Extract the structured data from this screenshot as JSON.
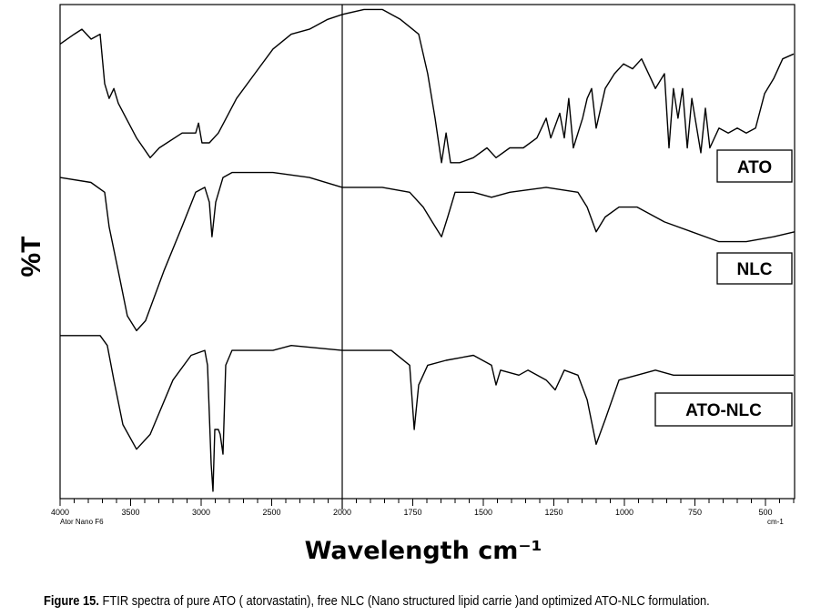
{
  "chart_data": {
    "type": "line",
    "title": "",
    "xlabel": "Wavelength cm⁻¹",
    "ylabel": "%T",
    "x_reversed": true,
    "xlim": [
      4000,
      400
    ],
    "ylim": [
      0,
      100
    ],
    "axis_note_left": "Ator Nano F6",
    "axis_note_right": "cm-1",
    "x_ticks": [
      "4000",
      "3500",
      "3000",
      "2500",
      "2000",
      "1750",
      "1500",
      "1250",
      "1000",
      "750",
      "500"
    ],
    "grid": false,
    "series": [
      {
        "name": "ATO",
        "color": "#000000",
        "points": [
          [
            4000,
            92
          ],
          [
            3900,
            94
          ],
          [
            3845,
            95
          ],
          [
            3780,
            93
          ],
          [
            3716,
            94
          ],
          [
            3684,
            84
          ],
          [
            3652,
            81
          ],
          [
            3619,
            83
          ],
          [
            3587,
            80
          ],
          [
            3458,
            73
          ],
          [
            3361,
            69
          ],
          [
            3297,
            71
          ],
          [
            3135,
            74
          ],
          [
            3039,
            74
          ],
          [
            3019,
            76
          ],
          [
            2994,
            72
          ],
          [
            2942,
            72
          ],
          [
            2878,
            74
          ],
          [
            2749,
            81
          ],
          [
            2620,
            86
          ],
          [
            2491,
            91
          ],
          [
            2361,
            94
          ],
          [
            2232,
            95
          ],
          [
            2103,
            97
          ],
          [
            2000,
            98
          ],
          [
            1923,
            99
          ],
          [
            1858,
            99
          ],
          [
            1794,
            97
          ],
          [
            1729,
            94
          ],
          [
            1697,
            86
          ],
          [
            1671,
            77
          ],
          [
            1648,
            68
          ],
          [
            1632,
            74
          ],
          [
            1616,
            68
          ],
          [
            1584,
            68
          ],
          [
            1535,
            69
          ],
          [
            1487,
            71
          ],
          [
            1455,
            69
          ],
          [
            1406,
            71
          ],
          [
            1358,
            71
          ],
          [
            1310,
            73
          ],
          [
            1277,
            77
          ],
          [
            1261,
            73
          ],
          [
            1229,
            78
          ],
          [
            1213,
            73
          ],
          [
            1197,
            81
          ],
          [
            1181,
            71
          ],
          [
            1148,
            77
          ],
          [
            1132,
            81
          ],
          [
            1116,
            83
          ],
          [
            1100,
            75
          ],
          [
            1068,
            83
          ],
          [
            1035,
            86
          ],
          [
            1003,
            88
          ],
          [
            971,
            87
          ],
          [
            939,
            89
          ],
          [
            906,
            85
          ],
          [
            890,
            83
          ],
          [
            858,
            86
          ],
          [
            842,
            71
          ],
          [
            826,
            83
          ],
          [
            810,
            77
          ],
          [
            794,
            83
          ],
          [
            777,
            71
          ],
          [
            761,
            81
          ],
          [
            729,
            70
          ],
          [
            713,
            79
          ],
          [
            697,
            71
          ],
          [
            665,
            75
          ],
          [
            632,
            74
          ],
          [
            600,
            75
          ],
          [
            568,
            74
          ],
          [
            535,
            75
          ],
          [
            503,
            82
          ],
          [
            471,
            85
          ],
          [
            439,
            89
          ],
          [
            400,
            90
          ]
        ]
      },
      {
        "name": "NLC",
        "color": "#000000",
        "points": [
          [
            4000,
            65
          ],
          [
            3781,
            64
          ],
          [
            3684,
            62
          ],
          [
            3652,
            55
          ],
          [
            3587,
            46
          ],
          [
            3523,
            37
          ],
          [
            3458,
            34
          ],
          [
            3394,
            36
          ],
          [
            3265,
            46
          ],
          [
            3136,
            55
          ],
          [
            3039,
            62
          ],
          [
            2974,
            63
          ],
          [
            2942,
            60
          ],
          [
            2923,
            53
          ],
          [
            2897,
            60
          ],
          [
            2845,
            65
          ],
          [
            2781,
            66
          ],
          [
            2491,
            66
          ],
          [
            2233,
            65
          ],
          [
            2000,
            63
          ],
          [
            1858,
            63
          ],
          [
            1761,
            62
          ],
          [
            1713,
            59
          ],
          [
            1681,
            56
          ],
          [
            1648,
            53
          ],
          [
            1626,
            57
          ],
          [
            1600,
            62
          ],
          [
            1535,
            62
          ],
          [
            1471,
            61
          ],
          [
            1406,
            62
          ],
          [
            1277,
            63
          ],
          [
            1165,
            62
          ],
          [
            1132,
            59
          ],
          [
            1100,
            54
          ],
          [
            1068,
            57
          ],
          [
            1019,
            59
          ],
          [
            955,
            59
          ],
          [
            858,
            56
          ],
          [
            761,
            54
          ],
          [
            665,
            52
          ],
          [
            568,
            52
          ],
          [
            471,
            53
          ],
          [
            397,
            54
          ]
        ]
      },
      {
        "name": "ATO-NLC",
        "color": "#000000",
        "points": [
          [
            4000,
            33
          ],
          [
            3716,
            33
          ],
          [
            3665,
            31
          ],
          [
            3619,
            24
          ],
          [
            3555,
            15
          ],
          [
            3458,
            10
          ],
          [
            3361,
            13
          ],
          [
            3200,
            24
          ],
          [
            3071,
            29
          ],
          [
            2974,
            30
          ],
          [
            2955,
            27
          ],
          [
            2929,
            7
          ],
          [
            2916,
            1.5
          ],
          [
            2903,
            14
          ],
          [
            2878,
            14
          ],
          [
            2865,
            13
          ],
          [
            2845,
            9
          ],
          [
            2826,
            27
          ],
          [
            2781,
            30
          ],
          [
            2491,
            30
          ],
          [
            2361,
            31
          ],
          [
            2000,
            30
          ],
          [
            1826,
            30
          ],
          [
            1761,
            27
          ],
          [
            1745,
            14
          ],
          [
            1729,
            23
          ],
          [
            1697,
            27
          ],
          [
            1632,
            28
          ],
          [
            1535,
            29
          ],
          [
            1471,
            27
          ],
          [
            1455,
            23
          ],
          [
            1439,
            26
          ],
          [
            1374,
            25
          ],
          [
            1342,
            26
          ],
          [
            1277,
            24
          ],
          [
            1245,
            22
          ],
          [
            1213,
            26
          ],
          [
            1165,
            25
          ],
          [
            1132,
            20
          ],
          [
            1100,
            11
          ],
          [
            1068,
            16
          ],
          [
            1019,
            24
          ],
          [
            955,
            25
          ],
          [
            890,
            26
          ],
          [
            826,
            25
          ],
          [
            761,
            25
          ],
          [
            632,
            25
          ],
          [
            503,
            25
          ],
          [
            400,
            25
          ]
        ]
      }
    ],
    "annotations": [
      "ATO",
      "NLC",
      "ATO-NLC"
    ]
  },
  "caption": {
    "label": "Figure 15.",
    "text": " FTIR spectra of pure ATO ( atorvastatin), free NLC (Nano structured lipid carrie )and optimized ATO-NLC formulation."
  }
}
